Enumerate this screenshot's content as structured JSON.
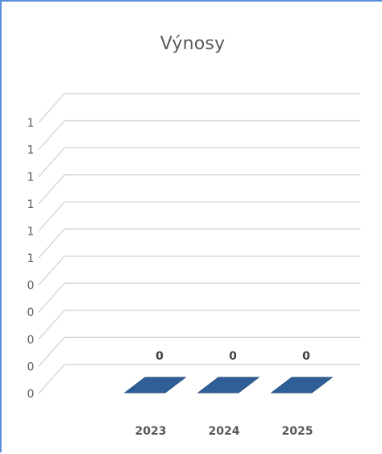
{
  "chart_data": {
    "type": "bar",
    "title": "Výnosy",
    "categories": [
      "2023",
      "2024",
      "2025"
    ],
    "values": [
      0,
      0,
      0
    ],
    "data_labels": [
      "0",
      "0",
      "0"
    ],
    "y_tick_labels": [
      "0",
      "0",
      "0",
      "0",
      "0",
      "1",
      "1",
      "1",
      "1",
      "1",
      "1"
    ],
    "xlabel": "",
    "ylabel": "",
    "grid": true,
    "legend": "none",
    "style": "3d",
    "bar_color": "#2e5f97"
  }
}
